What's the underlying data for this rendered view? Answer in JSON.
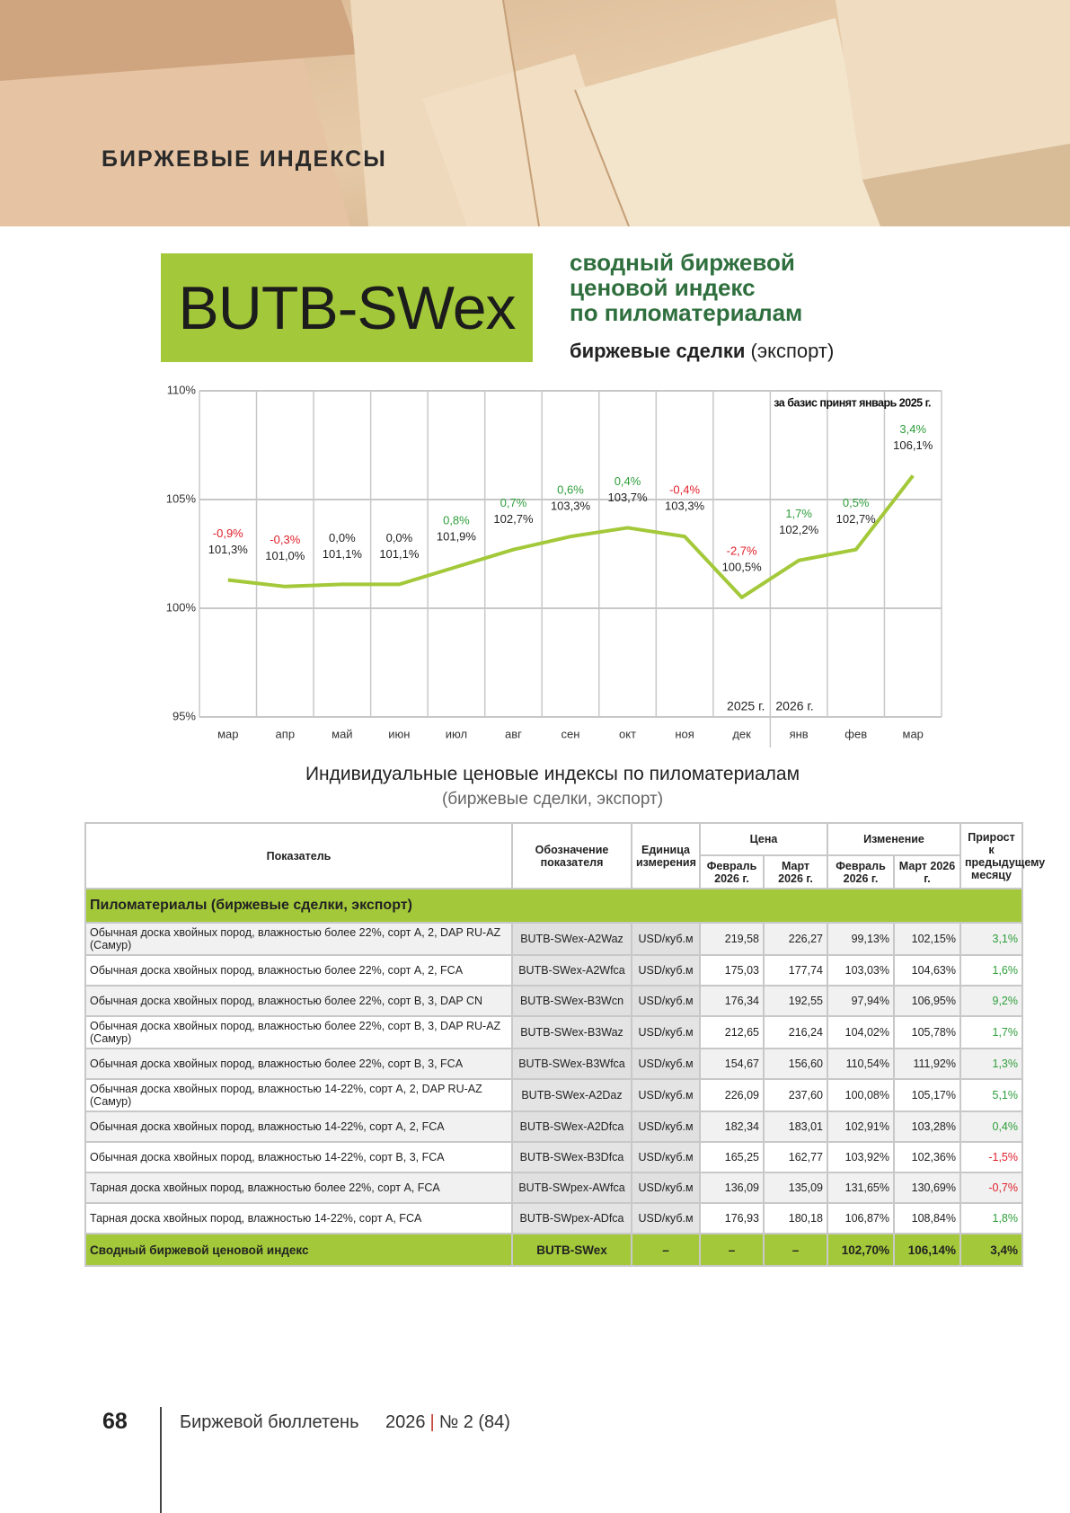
{
  "header": {
    "section": "БИРЖЕВЫЕ ИНДЕКСЫ"
  },
  "index_block": {
    "name": "BUTB-SWex",
    "title_lines": [
      "сводный биржевой",
      "ценовой индекс",
      "по пиломатериалам"
    ],
    "subtitle_bold": "биржевые сделки",
    "subtitle_rest": "(экспорт)"
  },
  "chart_data": {
    "type": "line",
    "categories": [
      "мар",
      "апр",
      "май",
      "июн",
      "июл",
      "авг",
      "сен",
      "окт",
      "ноя",
      "дек",
      "янв",
      "фев",
      "мар"
    ],
    "values": [
      101.3,
      101.0,
      101.1,
      101.1,
      101.9,
      102.7,
      103.3,
      103.7,
      103.3,
      100.5,
      102.2,
      102.7,
      106.1
    ],
    "value_labels": [
      "101,3%",
      "101,0%",
      "101,1%",
      "101,1%",
      "101,9%",
      "102,7%",
      "103,3%",
      "103,7%",
      "103,3%",
      "100,5%",
      "102,2%",
      "102,7%",
      "106,1%"
    ],
    "changes": {
      "values": [
        -0.9,
        -0.3,
        0.0,
        0.0,
        0.8,
        0.7,
        0.6,
        0.4,
        -0.4,
        -2.7,
        1.7,
        0.5,
        3.4
      ],
      "value_labels": [
        "-0,9%",
        "-0,3%",
        "0,0%",
        "0,0%",
        "0,8%",
        "0,7%",
        "0,6%",
        "0,4%",
        "-0,4%",
        "-2,7%",
        "1,7%",
        "0,5%",
        "3,4%"
      ]
    },
    "color": "#a3c93a",
    "ylim": [
      95,
      110
    ],
    "yticks": [
      {
        "value": 95,
        "label": "95%"
      },
      {
        "value": 100,
        "label": "100%"
      },
      {
        "value": 105,
        "label": "105%"
      },
      {
        "value": 110,
        "label": "110%"
      }
    ],
    "grid": true,
    "annotation": "за базис принят январь 2025 г.",
    "year_labels": [
      "2025 г.",
      "2026 г."
    ]
  },
  "table": {
    "title": "Индивидуальные ценовые индексы по пиломатериалам",
    "subtitle": "(биржевые сделки, экспорт)",
    "header": {
      "indicator": "Показатель",
      "code": "Обозначение показателя",
      "unit": "Единица измерения",
      "price": "Цена",
      "change": "Изменение",
      "growth": "Прирост к предыдущему месяцу",
      "months": [
        "Февраль 2026 г.",
        "Март 2026 г.",
        "Февраль 2026 г.",
        "Март 2026 г."
      ]
    },
    "section": "Пиломатериалы (биржевые сделки, экспорт)",
    "rows": [
      [
        "Обычная доска хвойных пород, влажностью более 22%, сорт А, 2, DAP RU-AZ (Самур)",
        "BUTB-SWex-A2Waz",
        "USD/куб.м",
        "219,58",
        "226,27",
        "99,13%",
        "102,15%",
        "3,1%"
      ],
      [
        "Обычная доска хвойных пород, влажностью более 22%, сорт А, 2, FCA",
        "BUTB-SWex-A2Wfca",
        "USD/куб.м",
        "175,03",
        "177,74",
        "103,03%",
        "104,63%",
        "1,6%"
      ],
      [
        "Обычная доска хвойных пород, влажностью более 22%, сорт В, 3, DAP CN",
        "BUTB-SWex-B3Wcn",
        "USD/куб.м",
        "176,34",
        "192,55",
        "97,94%",
        "106,95%",
        "9,2%"
      ],
      [
        "Обычная доска хвойных пород, влажностью более 22%, сорт В, 3, DAP RU-AZ (Самур)",
        "BUTB-SWex-B3Waz",
        "USD/куб.м",
        "212,65",
        "216,24",
        "104,02%",
        "105,78%",
        "1,7%"
      ],
      [
        "Обычная доска хвойных пород, влажностью более 22%, сорт В, 3, FCA",
        "BUTB-SWex-B3Wfca",
        "USD/куб.м",
        "154,67",
        "156,60",
        "110,54%",
        "111,92%",
        "1,3%"
      ],
      [
        "Обычная доска хвойных пород, влажностью 14-22%, сорт А, 2, DAP RU-AZ (Самур)",
        "BUTB-SWex-A2Daz",
        "USD/куб.м",
        "226,09",
        "237,60",
        "100,08%",
        "105,17%",
        "5,1%"
      ],
      [
        "Обычная доска хвойных пород, влажностью 14-22%, сорт А, 2, FCA",
        "BUTB-SWex-A2Dfca",
        "USD/куб.м",
        "182,34",
        "183,01",
        "102,91%",
        "103,28%",
        "0,4%"
      ],
      [
        "Обычная доска хвойных пород, влажностью 14-22%, сорт В, 3, FCA",
        "BUTB-SWex-B3Dfca",
        "USD/куб.м",
        "165,25",
        "162,77",
        "103,92%",
        "102,36%",
        "-1,5%"
      ],
      [
        "Тарная доска хвойных пород, влажностью более 22%, сорт А, FCA",
        "BUTB-SWpex-AWfca",
        "USD/куб.м",
        "136,09",
        "135,09",
        "131,65%",
        "130,69%",
        "-0,7%"
      ],
      [
        "Тарная доска хвойных пород, влажностью 14-22%, сорт А, FCA",
        "BUTB-SWpex-ADfca",
        "USD/куб.м",
        "176,93",
        "180,18",
        "106,87%",
        "108,84%",
        "1,8%"
      ]
    ],
    "total": [
      "Сводный биржевой ценовой индекс",
      "BUTB-SWex",
      "–",
      "–",
      "–",
      "102,70%",
      "106,14%",
      "3,4%"
    ]
  },
  "footer": {
    "page": "68",
    "journal": "Биржевой бюллетень",
    "year": "2026",
    "issue": "№ 2 (84)"
  }
}
